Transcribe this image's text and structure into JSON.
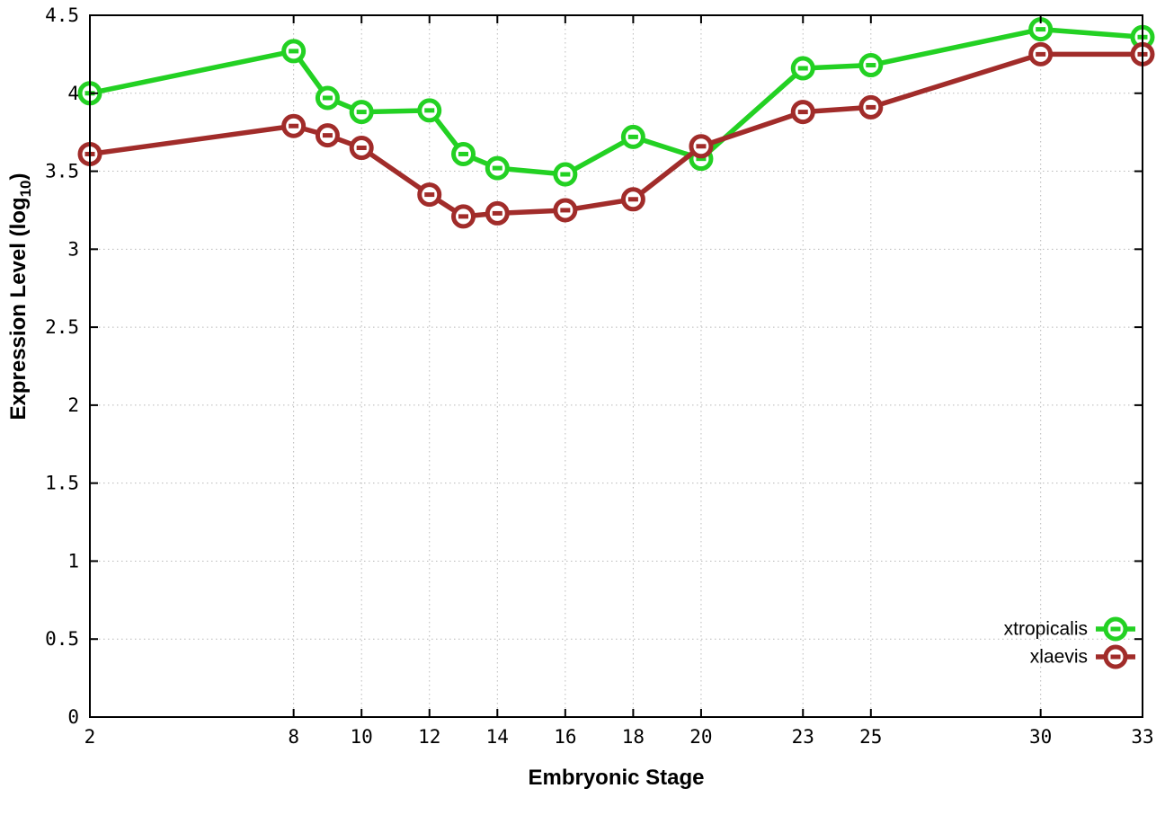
{
  "figure": {
    "background": "#ffffff"
  },
  "chart_data": {
    "type": "line",
    "title": "",
    "xlabel": "Embryonic Stage",
    "ylabel": "Expression Level (log10)",
    "ylabel_parts": {
      "main": "Expression Level (log",
      "sub": "10",
      "end": ")"
    },
    "x": [
      2,
      8,
      9,
      10,
      12,
      13,
      14,
      16,
      18,
      20,
      23,
      25,
      30,
      33
    ],
    "series": [
      {
        "name": "xtropicalis",
        "color": "#23d123",
        "values": [
          4.0,
          4.27,
          3.97,
          3.88,
          3.89,
          3.61,
          3.52,
          3.48,
          3.72,
          3.58,
          4.16,
          4.18,
          4.41,
          4.36
        ]
      },
      {
        "name": "xlaevis",
        "color": "#a12c2a",
        "values": [
          3.61,
          3.79,
          3.73,
          3.65,
          3.35,
          3.21,
          3.23,
          3.25,
          3.32,
          3.66,
          3.88,
          3.91,
          4.25,
          4.25
        ]
      }
    ],
    "xlim": [
      2,
      33
    ],
    "ylim": [
      0,
      4.5
    ],
    "x_ticks": [
      2,
      8,
      10,
      12,
      14,
      16,
      18,
      20,
      23,
      25,
      30,
      33
    ],
    "x_tick_labels": [
      "2",
      "8",
      "10",
      "12",
      "14",
      "16",
      "18",
      "20",
      "23",
      "25",
      "30",
      "33"
    ],
    "y_ticks": [
      0,
      0.5,
      1,
      1.5,
      2,
      2.5,
      3,
      3.5,
      4,
      4.5
    ],
    "y_tick_labels": [
      "0",
      "0.5",
      "1",
      "1.5",
      "2",
      "2.5",
      "3",
      "3.5",
      "4",
      "4.5"
    ],
    "grid": true,
    "grid_color": "#b8b8b8",
    "axis_color": "#000000",
    "legend_position": "bottom-right",
    "legend": [
      "xtropicalis",
      "xlaevis"
    ]
  }
}
